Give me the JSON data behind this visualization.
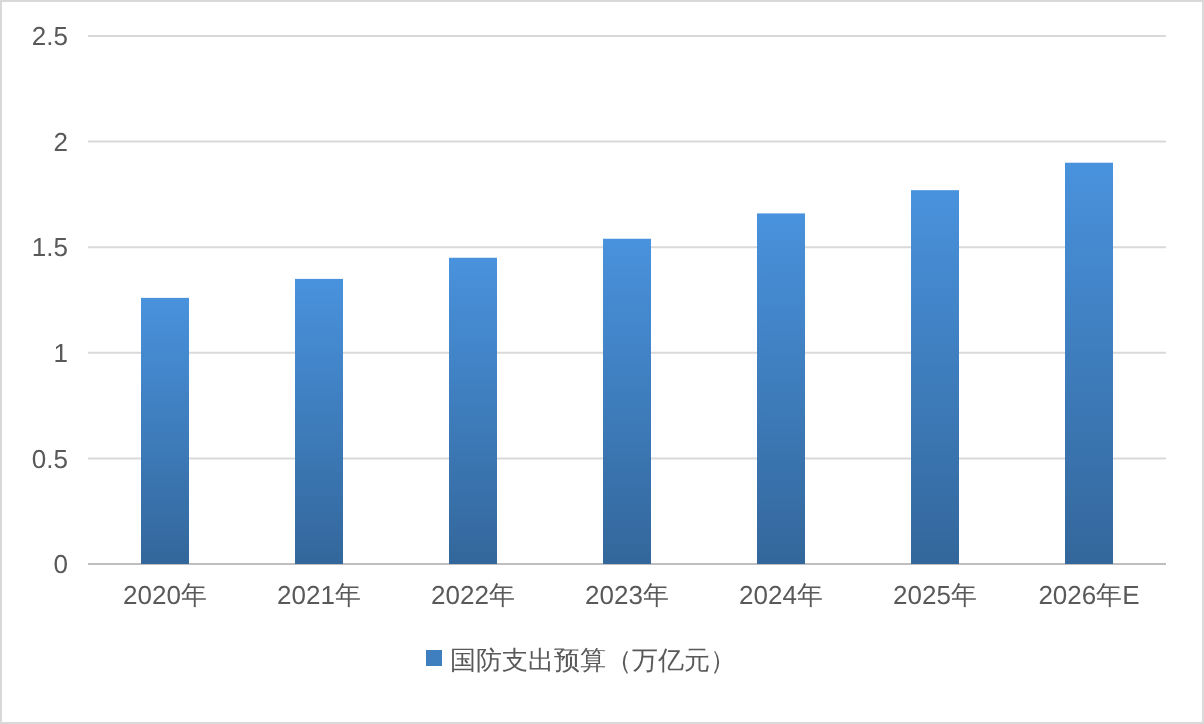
{
  "chart_data": {
    "type": "bar",
    "categories": [
      "2020年",
      "2021年",
      "2022年",
      "2023年",
      "2024年",
      "2025年",
      "2026年E"
    ],
    "series": [
      {
        "name": "国防支出预算（万亿元）",
        "color": "#3f7fc0",
        "values": [
          1.26,
          1.35,
          1.45,
          1.54,
          1.66,
          1.77,
          1.9
        ]
      }
    ],
    "ylim": [
      0,
      2.5
    ],
    "yticks": [
      0,
      0.5,
      1,
      1.5,
      2,
      2.5
    ],
    "grid": "y",
    "legend": "bottom"
  }
}
